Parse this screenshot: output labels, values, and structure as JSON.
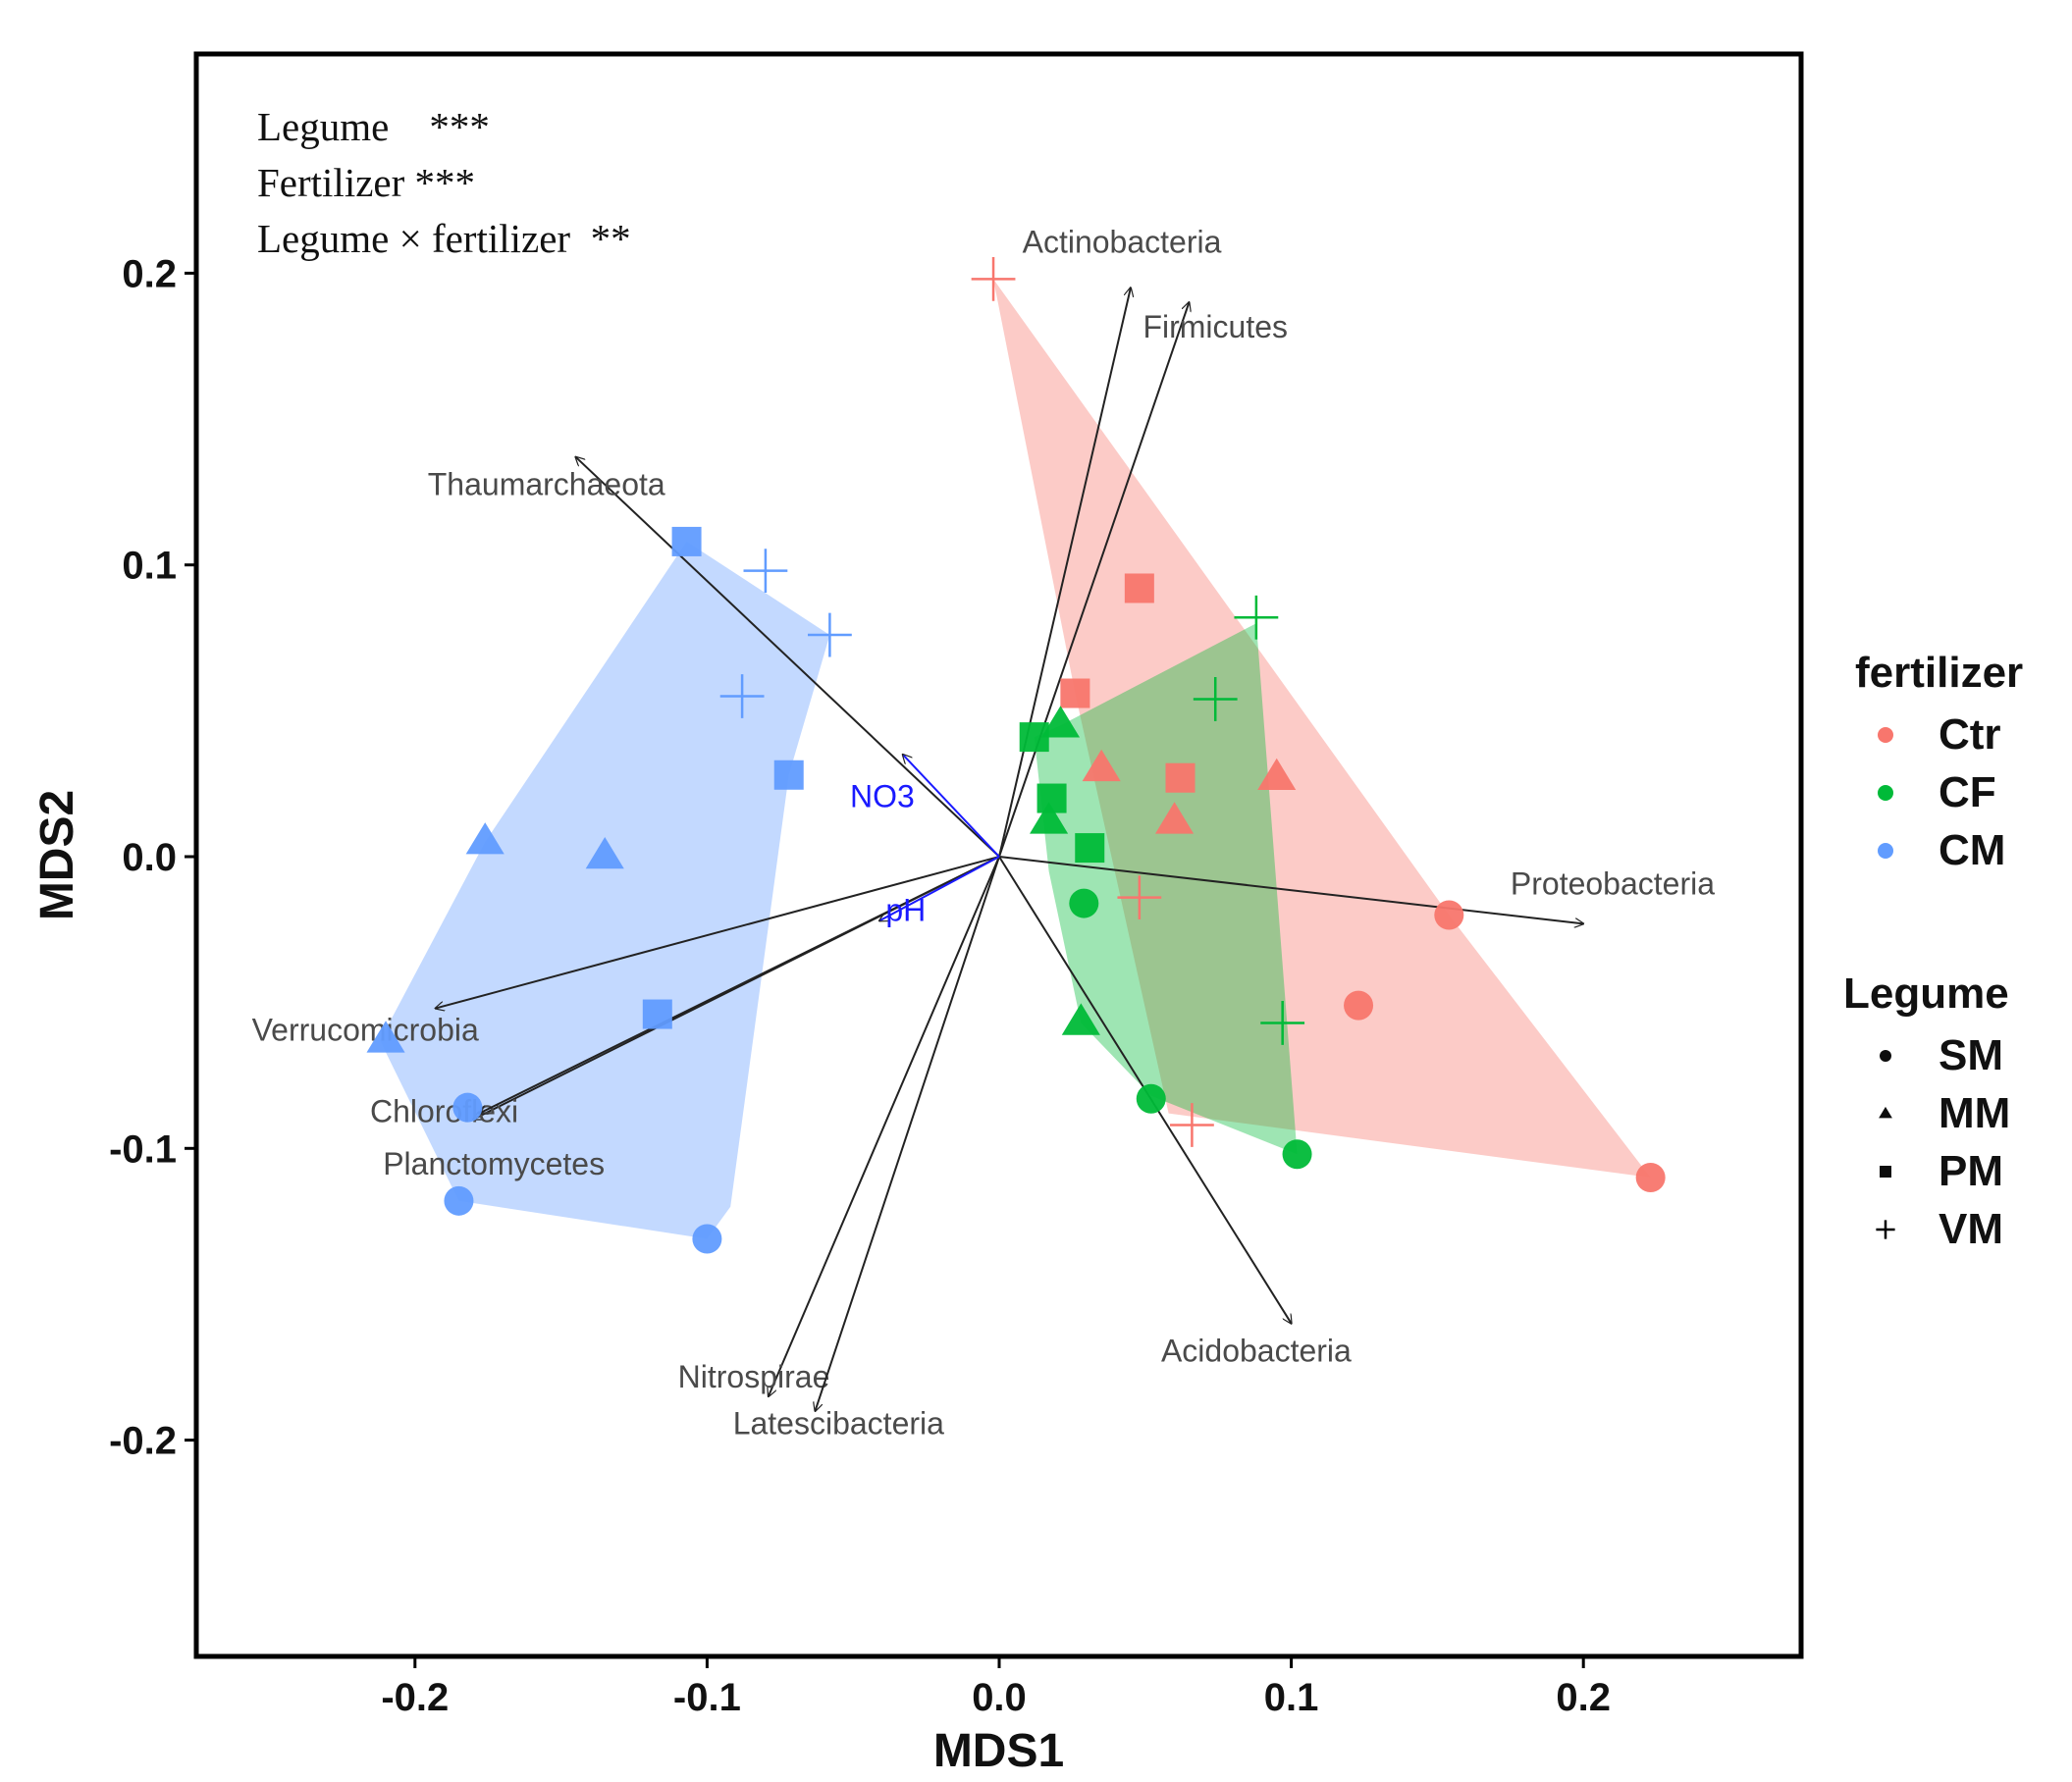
{
  "chart_data": {
    "type": "scatter",
    "title": "",
    "xlabel": "MDS1",
    "ylabel": "MDS2",
    "xlim": [
      -0.275,
      0.275
    ],
    "ylim": [
      -0.275,
      0.275
    ],
    "xticks": [
      -0.2,
      -0.1,
      0.0,
      0.1,
      0.2
    ],
    "yticks": [
      -0.2,
      -0.1,
      0.0,
      0.1,
      0.2
    ],
    "xtick_labels": [
      "-0.2",
      "-0.1",
      "0.0",
      "0.1",
      "0.2"
    ],
    "ytick_labels": [
      "-0.2",
      "-0.1",
      "0.0",
      "0.1",
      "0.2"
    ],
    "grid": false,
    "annotations": [
      "Legume    ***",
      "Fertilizer ***",
      "Legume × fertilizer  **"
    ],
    "colors": {
      "Ctr": "#F8766D",
      "CF": "#00BA38",
      "CM": "#619CFF",
      "overlap": "#a0805a"
    },
    "legends": [
      {
        "title": "fertilizer",
        "entries": [
          {
            "label": "Ctr",
            "color": "#F8766D"
          },
          {
            "label": "CF",
            "color": "#00BA38"
          },
          {
            "label": "CM",
            "color": "#619CFF"
          }
        ]
      },
      {
        "title": "Legume",
        "entries": [
          {
            "label": "SM",
            "shape": "circle"
          },
          {
            "label": "MM",
            "shape": "triangle"
          },
          {
            "label": "PM",
            "shape": "square"
          },
          {
            "label": "VM",
            "shape": "plus"
          }
        ]
      }
    ],
    "hulls": [
      {
        "group": "CM",
        "color": "#619CFF",
        "points": [
          [
            -0.107,
            0.108
          ],
          [
            -0.058,
            0.076
          ],
          [
            -0.072,
            0.028
          ],
          [
            -0.092,
            -0.12
          ],
          [
            -0.1,
            -0.131
          ],
          [
            -0.185,
            -0.118
          ],
          [
            -0.212,
            -0.063
          ],
          [
            -0.176,
            0.005
          ]
        ]
      },
      {
        "group": "Ctr",
        "color": "#F8766D",
        "points": [
          [
            -0.002,
            0.198
          ],
          [
            0.154,
            -0.02
          ],
          [
            0.223,
            -0.11
          ],
          [
            0.058,
            -0.088
          ],
          [
            0.026,
            0.056
          ]
        ]
      },
      {
        "group": "CF",
        "color": "#00BA38",
        "points": [
          [
            0.088,
            0.08
          ],
          [
            0.102,
            -0.102
          ],
          [
            0.052,
            -0.082
          ],
          [
            0.028,
            -0.057
          ],
          [
            0.017,
            -0.005
          ],
          [
            0.012,
            0.041
          ],
          [
            0.021,
            0.045
          ]
        ]
      }
    ],
    "points": [
      {
        "group": "CM",
        "legume": "SM",
        "x": -0.182,
        "y": -0.086
      },
      {
        "group": "CM",
        "legume": "SM",
        "x": -0.185,
        "y": -0.118
      },
      {
        "group": "CM",
        "legume": "SM",
        "x": -0.1,
        "y": -0.131
      },
      {
        "group": "CM",
        "legume": "MM",
        "x": -0.176,
        "y": 0.005
      },
      {
        "group": "CM",
        "legume": "MM",
        "x": -0.135,
        "y": 0.0
      },
      {
        "group": "CM",
        "legume": "MM",
        "x": -0.21,
        "y": -0.063
      },
      {
        "group": "CM",
        "legume": "PM",
        "x": -0.107,
        "y": 0.108
      },
      {
        "group": "CM",
        "legume": "PM",
        "x": -0.072,
        "y": 0.028
      },
      {
        "group": "CM",
        "legume": "PM",
        "x": -0.117,
        "y": -0.054
      },
      {
        "group": "CM",
        "legume": "VM",
        "x": -0.08,
        "y": 0.098
      },
      {
        "group": "CM",
        "legume": "VM",
        "x": -0.058,
        "y": 0.076
      },
      {
        "group": "CM",
        "legume": "VM",
        "x": -0.088,
        "y": 0.055
      },
      {
        "group": "Ctr",
        "legume": "SM",
        "x": 0.154,
        "y": -0.02
      },
      {
        "group": "Ctr",
        "legume": "SM",
        "x": 0.123,
        "y": -0.051
      },
      {
        "group": "Ctr",
        "legume": "SM",
        "x": 0.223,
        "y": -0.11
      },
      {
        "group": "Ctr",
        "legume": "MM",
        "x": 0.035,
        "y": 0.03
      },
      {
        "group": "Ctr",
        "legume": "MM",
        "x": 0.095,
        "y": 0.027
      },
      {
        "group": "Ctr",
        "legume": "MM",
        "x": 0.06,
        "y": 0.012
      },
      {
        "group": "Ctr",
        "legume": "PM",
        "x": 0.048,
        "y": 0.092
      },
      {
        "group": "Ctr",
        "legume": "PM",
        "x": 0.026,
        "y": 0.056
      },
      {
        "group": "Ctr",
        "legume": "PM",
        "x": 0.062,
        "y": 0.027
      },
      {
        "group": "Ctr",
        "legume": "VM",
        "x": -0.002,
        "y": 0.198
      },
      {
        "group": "Ctr",
        "legume": "VM",
        "x": 0.048,
        "y": -0.014
      },
      {
        "group": "Ctr",
        "legume": "VM",
        "x": 0.066,
        "y": -0.092
      },
      {
        "group": "CF",
        "legume": "SM",
        "x": 0.029,
        "y": -0.016
      },
      {
        "group": "CF",
        "legume": "SM",
        "x": 0.052,
        "y": -0.083
      },
      {
        "group": "CF",
        "legume": "SM",
        "x": 0.102,
        "y": -0.102
      },
      {
        "group": "CF",
        "legume": "MM",
        "x": 0.021,
        "y": 0.045
      },
      {
        "group": "CF",
        "legume": "MM",
        "x": 0.017,
        "y": 0.012
      },
      {
        "group": "CF",
        "legume": "MM",
        "x": 0.028,
        "y": -0.057
      },
      {
        "group": "CF",
        "legume": "PM",
        "x": 0.012,
        "y": 0.041
      },
      {
        "group": "CF",
        "legume": "PM",
        "x": 0.018,
        "y": 0.02
      },
      {
        "group": "CF",
        "legume": "PM",
        "x": 0.031,
        "y": 0.003
      },
      {
        "group": "CF",
        "legume": "VM",
        "x": 0.088,
        "y": 0.082
      },
      {
        "group": "CF",
        "legume": "VM",
        "x": 0.074,
        "y": 0.054
      },
      {
        "group": "CF",
        "legume": "VM",
        "x": 0.097,
        "y": -0.057
      }
    ],
    "arrows": [
      {
        "label": "Actinobacteria",
        "x": 0.045,
        "y": 0.195,
        "color": "#222222"
      },
      {
        "label": "Firmicutes",
        "x": 0.065,
        "y": 0.19,
        "color": "#222222"
      },
      {
        "label": "Thaumarchaeota",
        "x": -0.145,
        "y": 0.137,
        "color": "#222222"
      },
      {
        "label": "Proteobacteria",
        "x": 0.2,
        "y": -0.023,
        "color": "#222222"
      },
      {
        "label": "Verrucomicrobia",
        "x": -0.193,
        "y": -0.052,
        "color": "#222222"
      },
      {
        "label": "Chloroflexi",
        "x": -0.18,
        "y": -0.09,
        "color": "#222222"
      },
      {
        "label": "Planctomycetes",
        "x": -0.178,
        "y": -0.088,
        "color": "#222222"
      },
      {
        "label": "Nitrospirae",
        "x": -0.079,
        "y": -0.185,
        "color": "#222222"
      },
      {
        "label": "Latescibacteria",
        "x": -0.063,
        "y": -0.19,
        "color": "#222222"
      },
      {
        "label": "Acidobacteria",
        "x": 0.1,
        "y": -0.16,
        "color": "#222222"
      },
      {
        "label": "NO3",
        "x": -0.033,
        "y": 0.035,
        "color": "#1a1aff"
      },
      {
        "label": "pH",
        "x": -0.041,
        "y": -0.022,
        "color": "#1a1aff"
      }
    ]
  }
}
